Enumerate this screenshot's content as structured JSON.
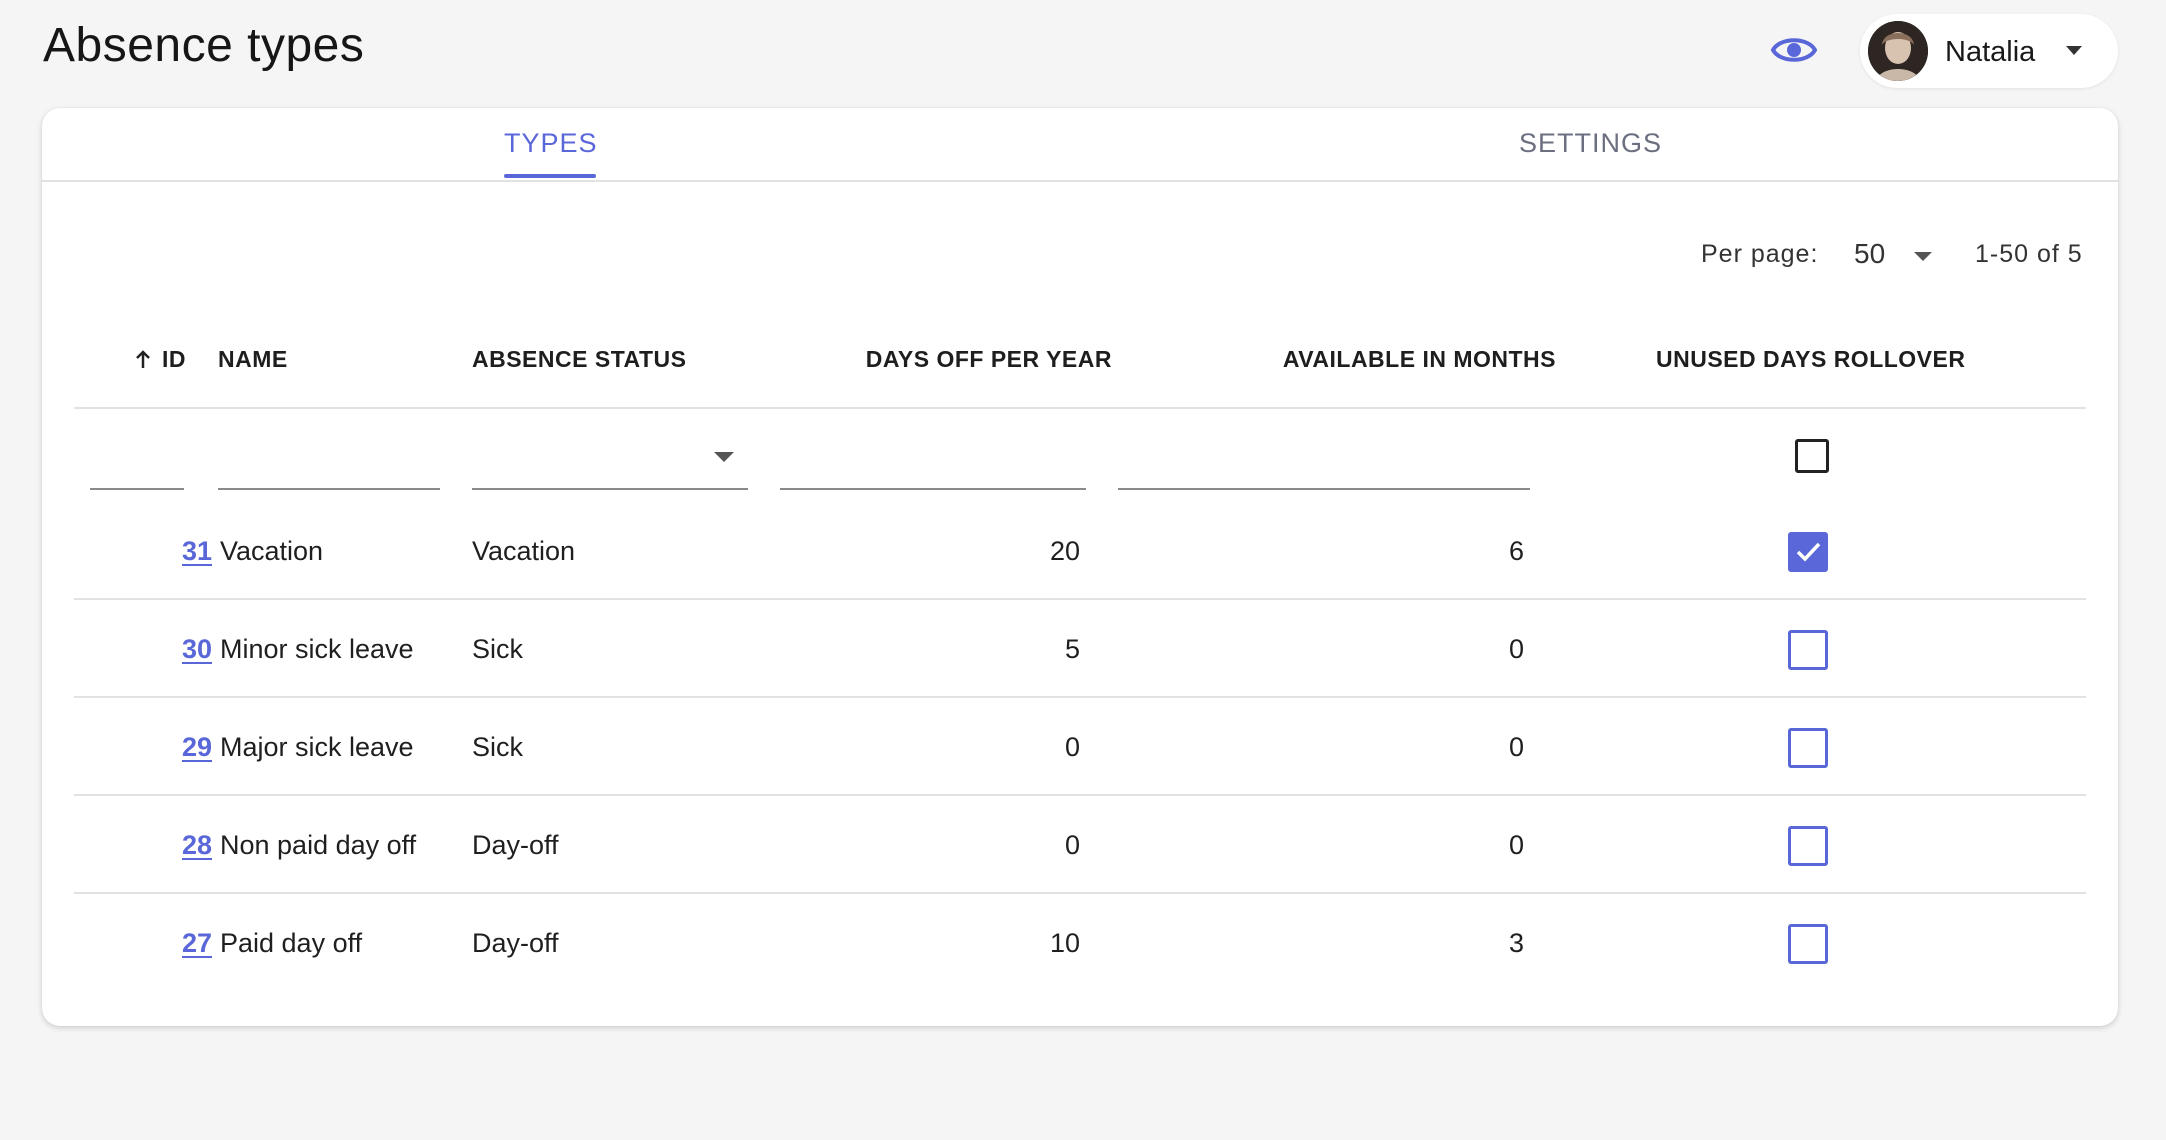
{
  "page": {
    "title": "Absence types"
  },
  "header": {
    "user_name": "Natalia",
    "icons": [
      "eye-icon",
      "chevron-down-icon"
    ]
  },
  "tabs": [
    {
      "label": "TYPES",
      "active": true
    },
    {
      "label": "SETTINGS",
      "active": false
    }
  ],
  "pagination": {
    "per_page_label": "Per page:",
    "per_page_value": "50",
    "range_text": "1-50 of 5"
  },
  "table": {
    "columns": [
      {
        "key": "id",
        "label": "ID",
        "sorted": "asc"
      },
      {
        "key": "name",
        "label": "NAME"
      },
      {
        "key": "absence_status",
        "label": "ABSENCE STATUS"
      },
      {
        "key": "days_off_per_year",
        "label": "DAYS OFF PER YEAR"
      },
      {
        "key": "available_in_months",
        "label": "AVAILABLE IN MONTHS"
      },
      {
        "key": "unused_days_rollover",
        "label": "UNUSED DAYS ROLLOVER"
      }
    ],
    "rows": [
      {
        "id": "31",
        "name": "Vacation",
        "status": "Vacation",
        "days": "20",
        "months": "6",
        "rollover": true
      },
      {
        "id": "30",
        "name": "Minor sick leave",
        "status": "Sick",
        "days": "5",
        "months": "0",
        "rollover": false
      },
      {
        "id": "29",
        "name": "Major sick leave",
        "status": "Sick",
        "days": "0",
        "months": "0",
        "rollover": false
      },
      {
        "id": "28",
        "name": "Non paid day off",
        "status": "Day-off",
        "days": "0",
        "months": "0",
        "rollover": false
      },
      {
        "id": "27",
        "name": "Paid day off",
        "status": "Day-off",
        "days": "10",
        "months": "3",
        "rollover": false
      }
    ]
  },
  "colors": {
    "accent": "#5a67d8",
    "background": "#f5f5f5",
    "card": "#ffffff",
    "divider": "#e2e2e2"
  }
}
